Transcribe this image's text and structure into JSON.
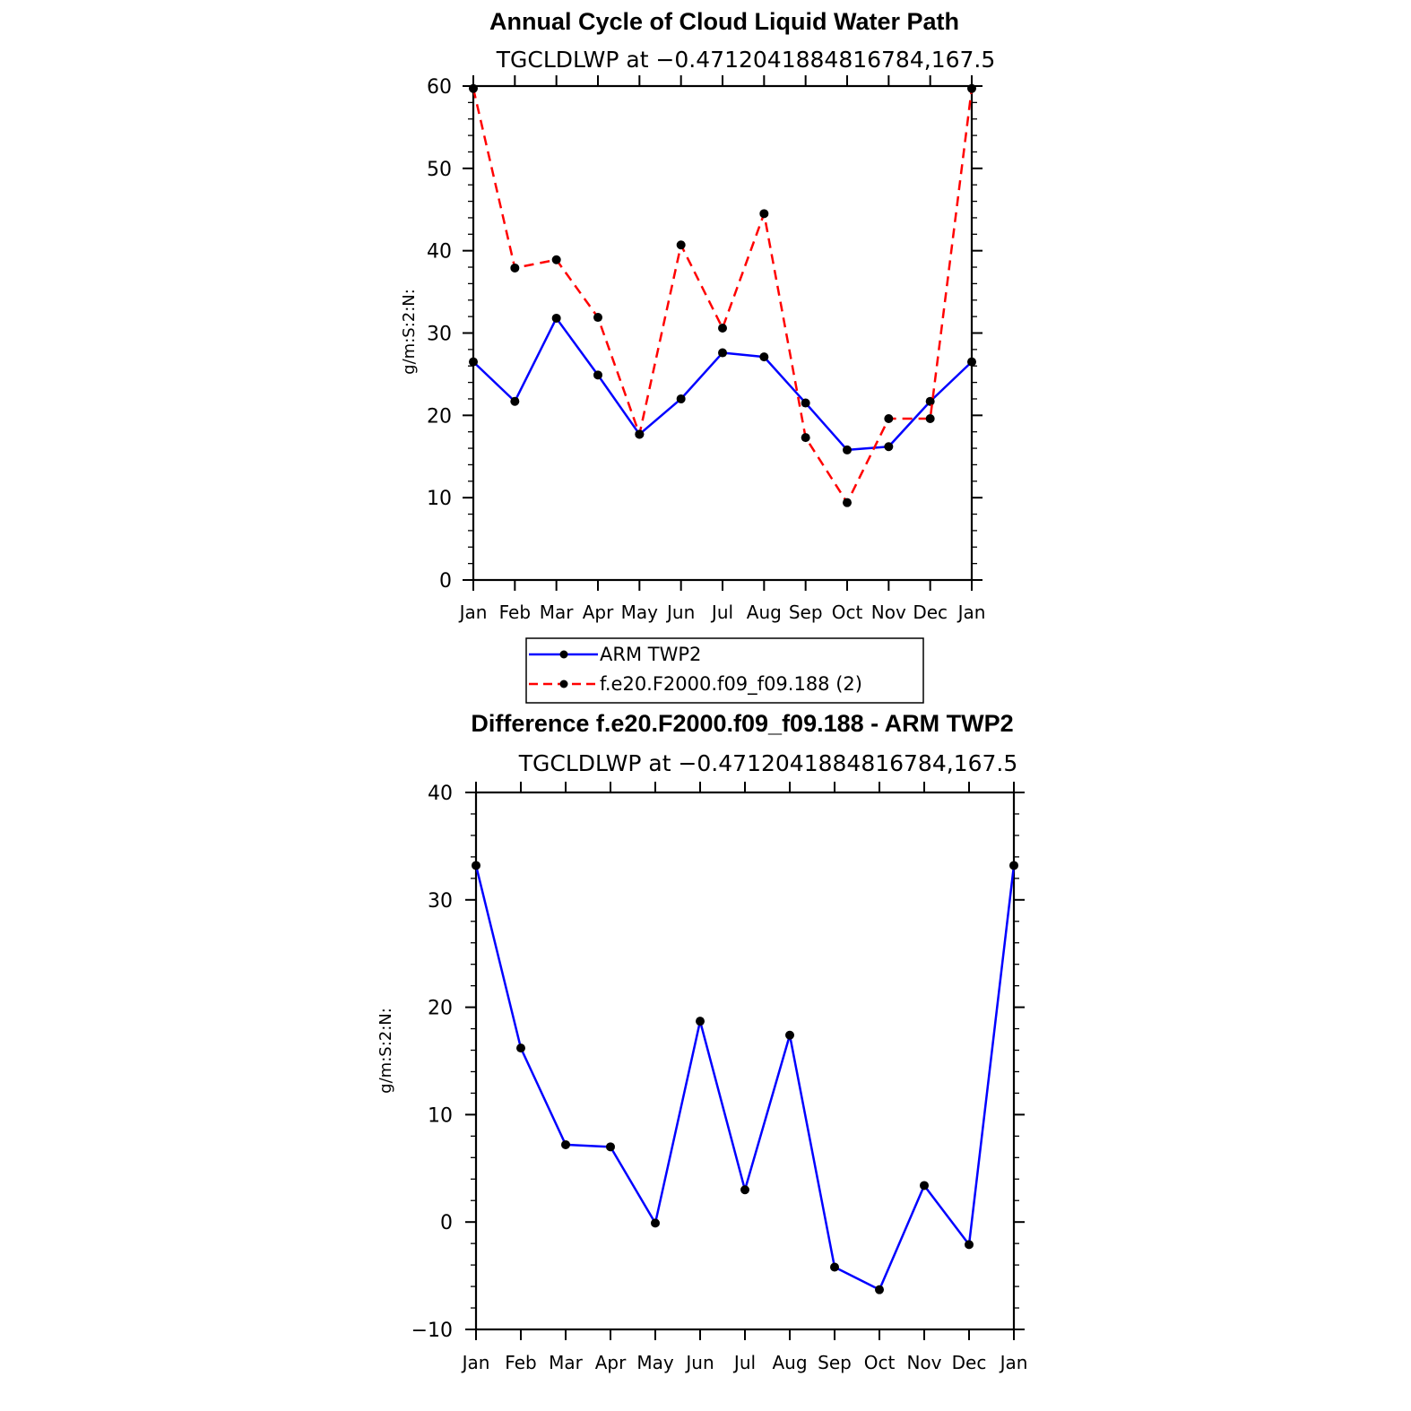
{
  "colors": {
    "obs": "#0000ff",
    "model": "#ff0000",
    "marker": "#000000"
  },
  "chart_data": [
    {
      "type": "line",
      "title": "Annual Cycle of Cloud Liquid Water Path",
      "subtitle": "TGCLDLWP at −0.4712041884816784,167.5",
      "xlabel": "",
      "ylabel": "g/m:S:2:N:",
      "ylim": [
        0,
        60
      ],
      "yticks": [
        0,
        10,
        20,
        30,
        40,
        50,
        60
      ],
      "categories": [
        "Jan",
        "Feb",
        "Mar",
        "Apr",
        "May",
        "Jun",
        "Jul",
        "Aug",
        "Sep",
        "Oct",
        "Nov",
        "Dec",
        "Jan"
      ],
      "series": [
        {
          "name": "ARM TWP2",
          "style": "solid",
          "values": [
            26.5,
            21.7,
            31.8,
            24.9,
            17.7,
            22.0,
            27.6,
            27.1,
            21.5,
            15.8,
            16.2,
            21.7,
            26.5
          ]
        },
        {
          "name": "f.e20.F2000.f09_f09.188 (2)",
          "style": "dashed",
          "values": [
            59.7,
            37.9,
            38.9,
            31.9,
            17.7,
            40.7,
            30.6,
            44.5,
            17.3,
            9.4,
            19.6,
            19.6,
            59.7
          ]
        }
      ],
      "legend": [
        "ARM TWP2",
        "f.e20.F2000.f09_f09.188 (2)"
      ],
      "legend_position": "bottom-center"
    },
    {
      "type": "line",
      "title": "Difference f.e20.F2000.f09_f09.188 - ARM TWP2",
      "subtitle": "TGCLDLWP at −0.4712041884816784,167.5",
      "xlabel": "",
      "ylabel": "g/m:S:2:N:",
      "ylim": [
        -10,
        40
      ],
      "yticks": [
        -10,
        0,
        10,
        20,
        30,
        40
      ],
      "ytick_labels": [
        "−10",
        "0",
        "10",
        "20",
        "30",
        "40"
      ],
      "categories": [
        "Jan",
        "Feb",
        "Mar",
        "Apr",
        "May",
        "Jun",
        "Jul",
        "Aug",
        "Sep",
        "Oct",
        "Nov",
        "Dec",
        "Jan"
      ],
      "series": [
        {
          "name": "Difference",
          "style": "solid",
          "values": [
            33.2,
            16.2,
            7.2,
            7.0,
            -0.1,
            18.7,
            3.0,
            17.4,
            -4.2,
            -6.3,
            3.4,
            -2.1,
            33.2
          ]
        }
      ]
    }
  ]
}
